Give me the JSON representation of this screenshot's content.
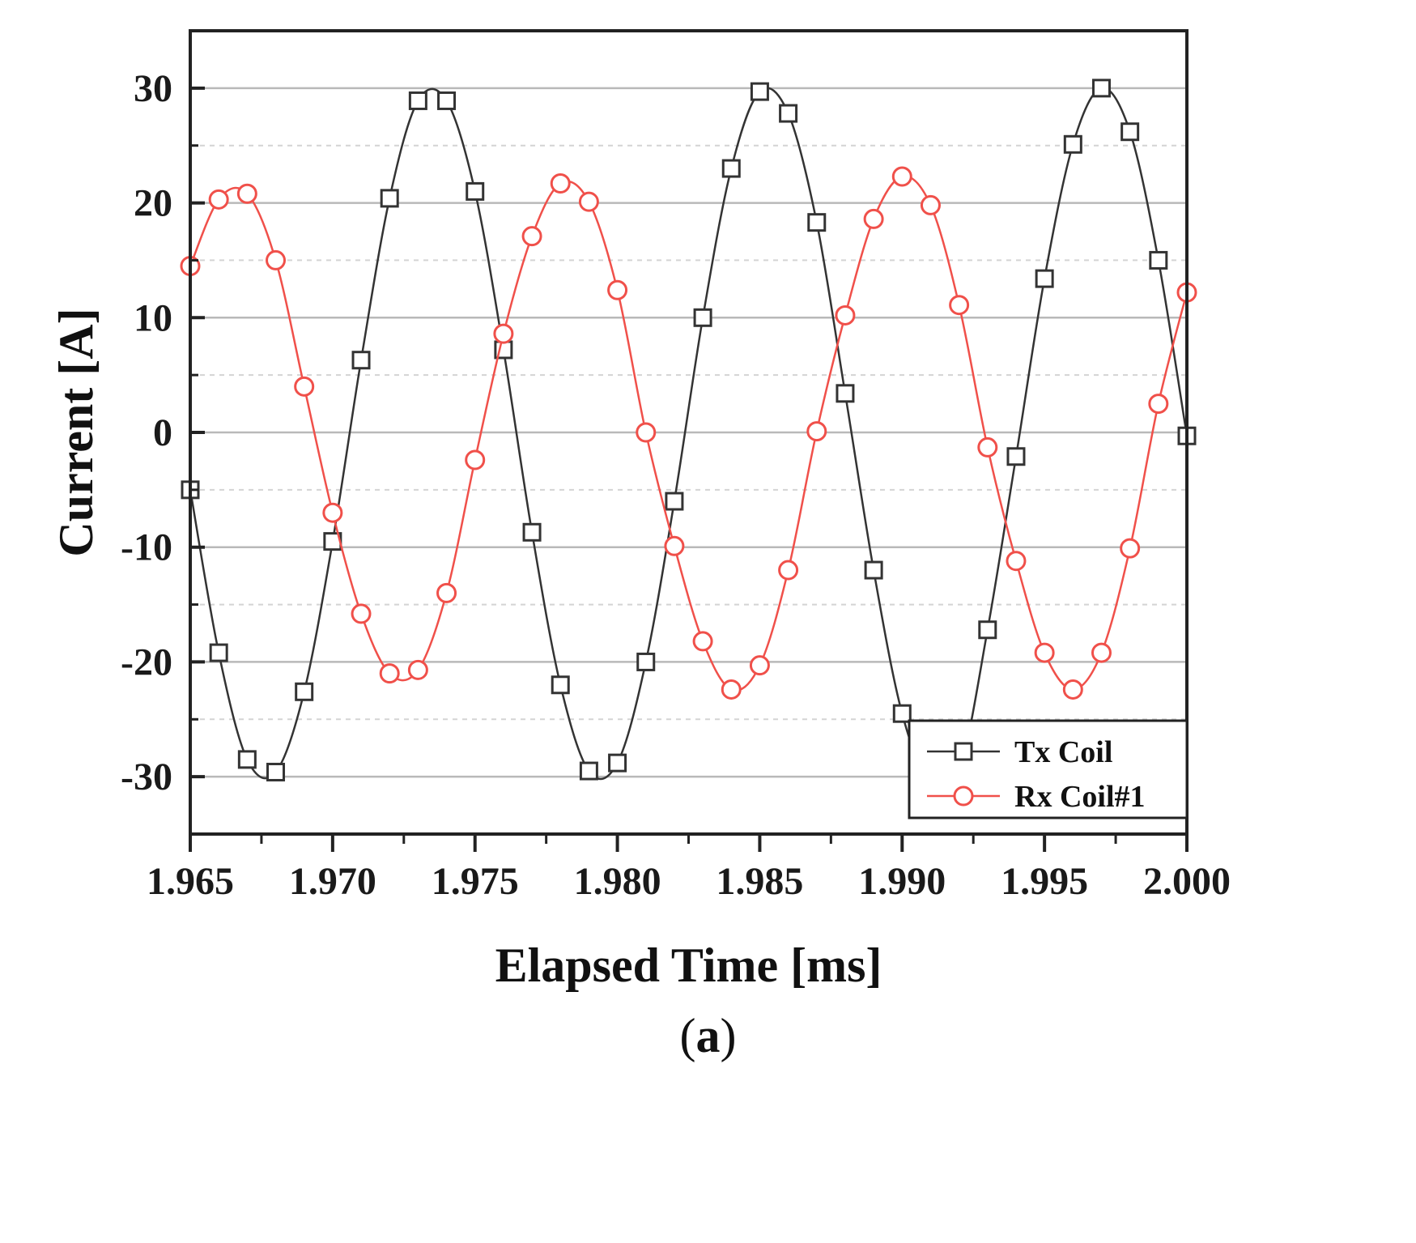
{
  "chart_data": {
    "type": "line",
    "xlabel": "Elapsed Time [ms]",
    "ylabel": "Current [A]",
    "xlim": [
      1.965,
      2.0
    ],
    "ylim": [
      -35,
      35
    ],
    "x_ticks": [
      "1.965",
      "1.970",
      "1.975",
      "1.980",
      "1.985",
      "1.990",
      "1.995",
      "2.000"
    ],
    "x_tick_values": [
      1.965,
      1.97,
      1.975,
      1.98,
      1.985,
      1.99,
      1.995,
      2.0
    ],
    "y_ticks": [
      "30",
      "20",
      "10",
      "0",
      "-10",
      "-20",
      "-30"
    ],
    "y_tick_values": [
      30,
      20,
      10,
      0,
      -10,
      -20,
      -30
    ],
    "grid": true,
    "legend_position": "bottom-right",
    "series": [
      {
        "name": "Tx Coil",
        "color": "#333333",
        "marker": "square",
        "x": [
          1.965,
          1.966,
          1.967,
          1.968,
          1.969,
          1.97,
          1.971,
          1.972,
          1.973,
          1.974,
          1.975,
          1.976,
          1.977,
          1.978,
          1.979,
          1.98,
          1.981,
          1.982,
          1.983,
          1.984,
          1.985,
          1.986,
          1.987,
          1.988,
          1.989,
          1.99,
          1.991,
          1.992,
          1.993,
          1.994,
          1.995,
          1.996,
          1.997,
          1.998,
          1.999,
          2.0
        ],
        "values": [
          -5,
          -19.2,
          -28.5,
          -29.6,
          -22.6,
          -9.5,
          6.3,
          20.4,
          28.9,
          28.9,
          21,
          7.2,
          -8.7,
          -22,
          -29.5,
          -28.8,
          -20,
          -6,
          10,
          23,
          29.7,
          27.8,
          18.3,
          3.4,
          -12,
          -24.5,
          -30.5,
          -29.5,
          -17.2,
          -2.1,
          13.4,
          25.1,
          30,
          26.2,
          15,
          -0.3
        ]
      },
      {
        "name": "Rx Coil#1",
        "color": "#f0504a",
        "marker": "circle",
        "x": [
          1.965,
          1.966,
          1.967,
          1.968,
          1.969,
          1.97,
          1.971,
          1.972,
          1.973,
          1.974,
          1.975,
          1.976,
          1.977,
          1.978,
          1.979,
          1.98,
          1.981,
          1.982,
          1.983,
          1.984,
          1.985,
          1.986,
          1.987,
          1.988,
          1.989,
          1.99,
          1.991,
          1.992,
          1.993,
          1.994,
          1.995,
          1.996,
          1.997,
          1.998,
          1.999,
          2.0
        ],
        "values": [
          14.5,
          20.3,
          20.8,
          15,
          4,
          -7,
          -15.8,
          -21,
          -20.7,
          -14,
          -2.4,
          8.6,
          17.1,
          21.7,
          20.1,
          12.4,
          0,
          -9.9,
          -18.2,
          -22.4,
          -20.3,
          -12,
          0.1,
          10.2,
          18.6,
          22.3,
          19.8,
          11.1,
          -1.3,
          -11.2,
          -19.2,
          -22.4,
          -19.2,
          -10.1,
          2.5,
          12.2
        ]
      }
    ]
  },
  "caption": {
    "open": "(",
    "label": "a",
    "close": ")"
  }
}
